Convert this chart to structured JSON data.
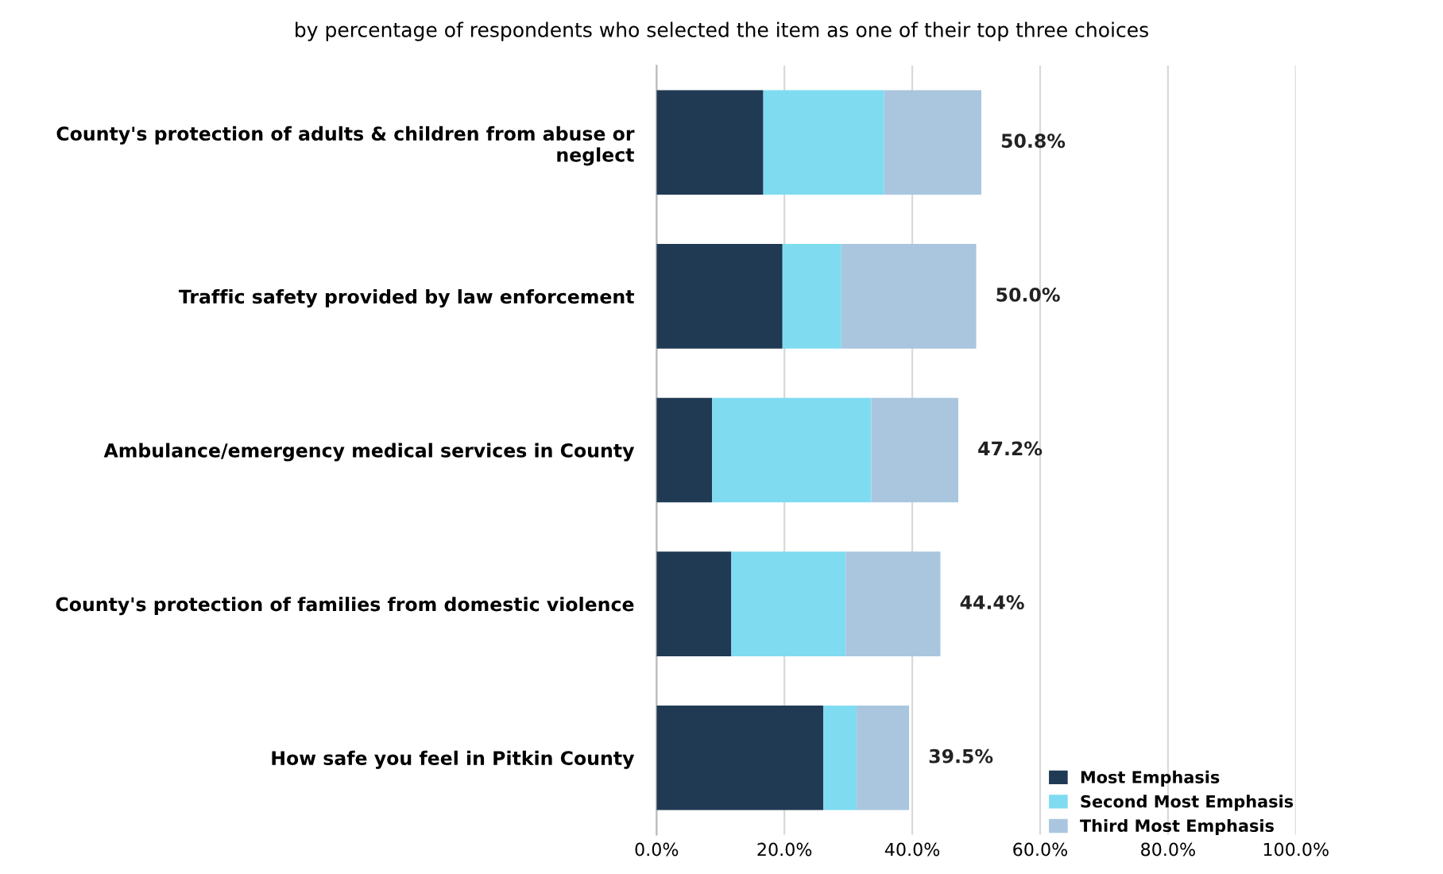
{
  "chart_data": {
    "type": "bar",
    "orientation": "horizontal",
    "stacked": true,
    "title": "by percentage of respondents who selected the item as one of their top three choices",
    "categories": [
      "County's protection of adults & children from abuse or neglect",
      "Traffic safety provided by law enforcement",
      "Ambulance/emergency medical services in County",
      "County's protection of families from domestic violence",
      "How safe you feel in Pitkin County"
    ],
    "series": [
      {
        "name": "Most Emphasis",
        "color": "#203a54",
        "values": [
          16.7,
          19.7,
          8.7,
          11.7,
          26.1
        ]
      },
      {
        "name": "Second Most Emphasis",
        "color": "#7fdcf0",
        "values": [
          18.9,
          9.2,
          24.9,
          17.9,
          5.2
        ]
      },
      {
        "name": "Third Most Emphasis",
        "color": "#a9c6de",
        "values": [
          15.2,
          21.1,
          13.6,
          14.8,
          8.2
        ]
      }
    ],
    "totals": [
      "50.8%",
      "50.0%",
      "47.2%",
      "44.4%",
      "39.5%"
    ],
    "xlim": [
      0,
      100
    ],
    "xticks": [
      {
        "value": 0,
        "label": "0.0%"
      },
      {
        "value": 20,
        "label": "20.0%"
      },
      {
        "value": 40,
        "label": "40.0%"
      },
      {
        "value": 60,
        "label": "60.0%"
      },
      {
        "value": 80,
        "label": "80.0%"
      },
      {
        "value": 100,
        "label": "100.0%"
      }
    ],
    "grid": "x",
    "legend": "bottom right"
  }
}
